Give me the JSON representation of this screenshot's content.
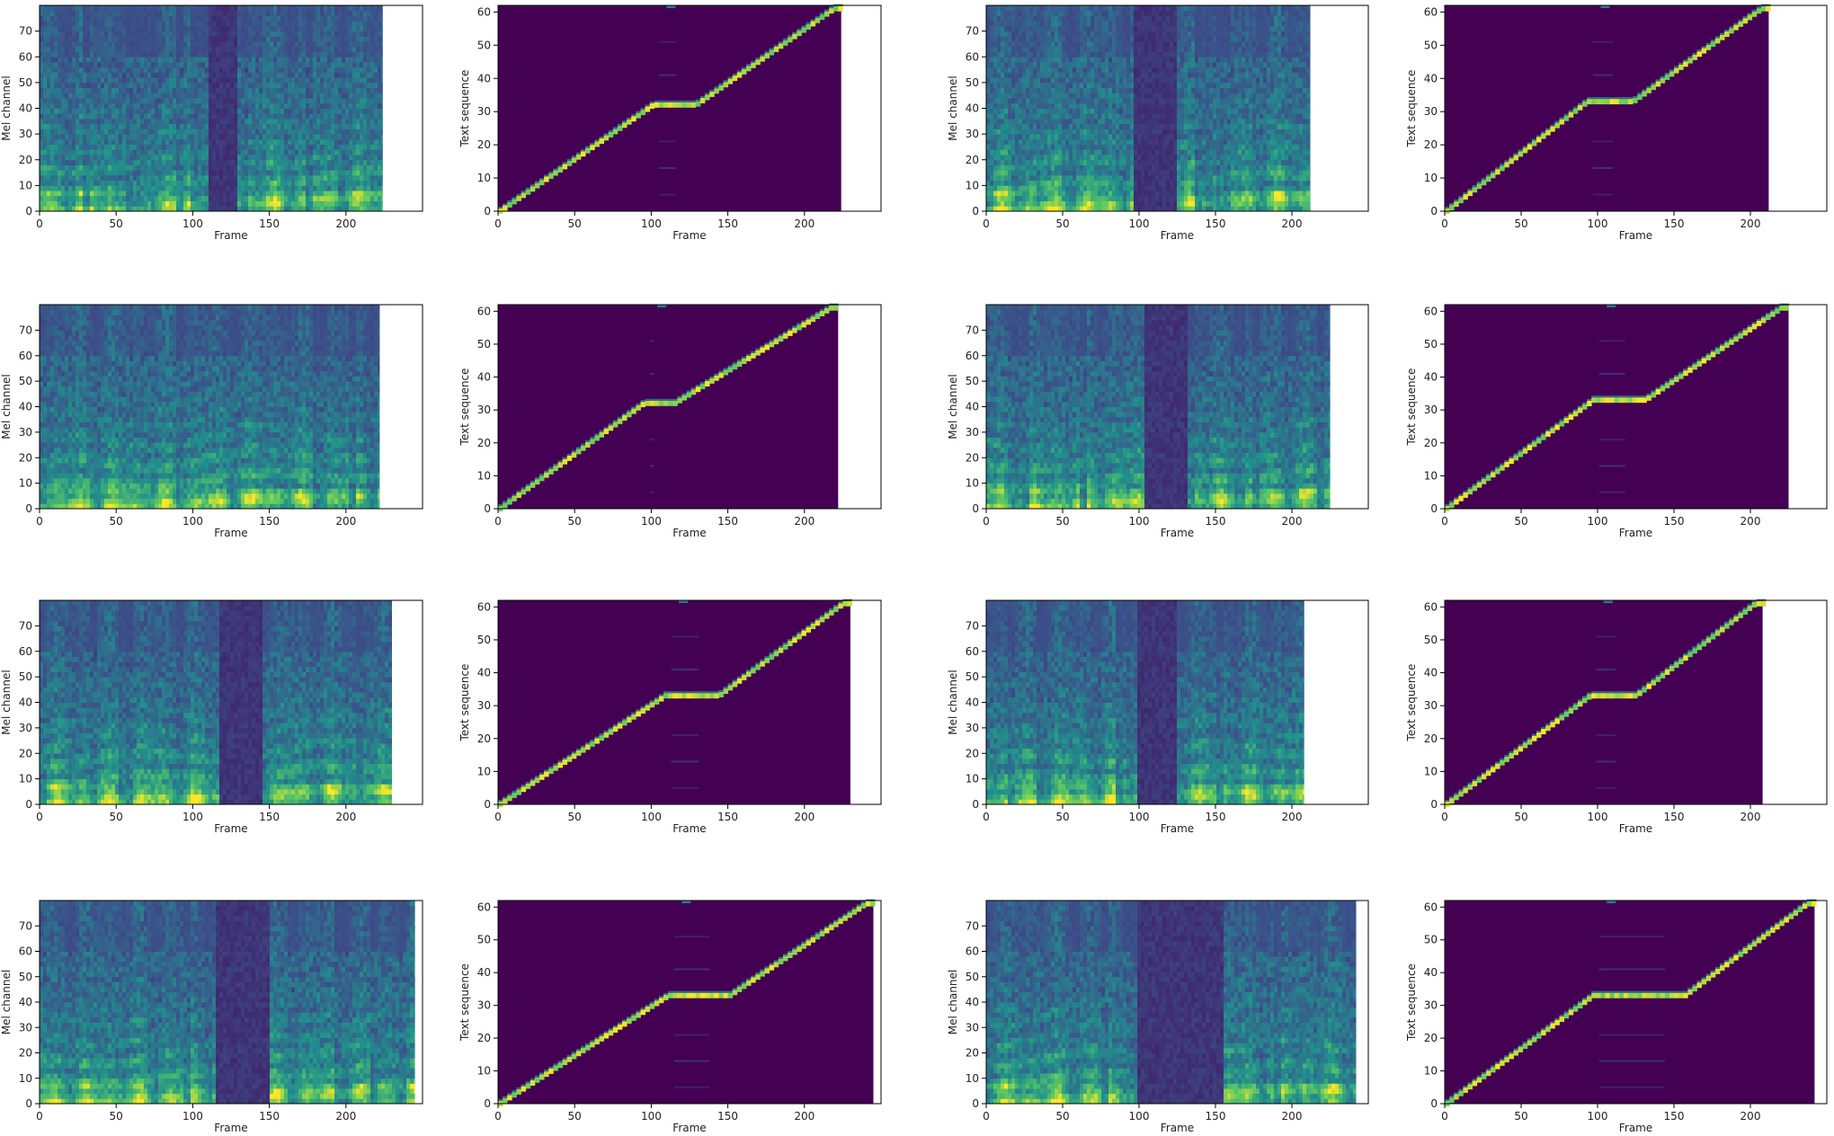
{
  "figure": {
    "layout": "4 rows x 4 columns; each row holds two pairs of (mel spectrogram, attention alignment)",
    "colormap": [
      "#440154",
      "#3b528b",
      "#21918c",
      "#5ec962",
      "#fde725"
    ]
  },
  "chart_data": [
    {
      "type": "heatmap",
      "kind": "mel",
      "xlabel": "Frame",
      "ylabel": "Mel channel",
      "xlim": [
        0,
        250
      ],
      "ylim": [
        0,
        80
      ],
      "xticks": [
        0,
        50,
        100,
        150,
        200
      ],
      "yticks": [
        0,
        10,
        20,
        30,
        40,
        50,
        60,
        70
      ],
      "frames": 224,
      "pause": [
        108,
        128
      ]
    },
    {
      "type": "heatmap",
      "kind": "alignment",
      "xlabel": "Frame",
      "ylabel": "Text sequence",
      "xlim": [
        0,
        250
      ],
      "ylim": [
        0,
        62
      ],
      "xticks": [
        0,
        50,
        100,
        150,
        200
      ],
      "yticks": [
        0,
        10,
        20,
        30,
        40,
        50,
        60
      ],
      "frames": 224,
      "pause": [
        100,
        128
      ],
      "plateau": 32
    },
    {
      "type": "heatmap",
      "kind": "mel",
      "xlabel": "Frame",
      "ylabel": "Mel channel",
      "xlim": [
        0,
        250
      ],
      "ylim": [
        0,
        80
      ],
      "xticks": [
        0,
        50,
        100,
        150,
        200
      ],
      "yticks": [
        0,
        10,
        20,
        30,
        40,
        50,
        60,
        70
      ],
      "frames": 212,
      "pause": [
        96,
        124
      ]
    },
    {
      "type": "heatmap",
      "kind": "alignment",
      "xlabel": "Frame",
      "ylabel": "Text sequence",
      "xlim": [
        0,
        250
      ],
      "ylim": [
        0,
        62
      ],
      "xticks": [
        0,
        50,
        100,
        150,
        200
      ],
      "yticks": [
        0,
        10,
        20,
        30,
        40,
        50,
        60
      ],
      "frames": 212,
      "pause": [
        92,
        122
      ],
      "plateau": 33
    },
    {
      "type": "heatmap",
      "kind": "mel",
      "xlabel": "Frame",
      "ylabel": "Mel channel",
      "xlim": [
        0,
        250
      ],
      "ylim": [
        0,
        80
      ],
      "xticks": [
        0,
        50,
        100,
        150,
        200
      ],
      "yticks": [
        0,
        10,
        20,
        30,
        40,
        50,
        60,
        70
      ],
      "frames": 222,
      "pause": null
    },
    {
      "type": "heatmap",
      "kind": "alignment",
      "xlabel": "Frame",
      "ylabel": "Text sequence",
      "xlim": [
        0,
        250
      ],
      "ylim": [
        0,
        62
      ],
      "xticks": [
        0,
        50,
        100,
        150,
        200
      ],
      "yticks": [
        0,
        10,
        20,
        30,
        40,
        50,
        60
      ],
      "frames": 222,
      "pause": [
        94,
        114
      ],
      "plateau": 32
    },
    {
      "type": "heatmap",
      "kind": "mel",
      "xlabel": "Frame",
      "ylabel": "Mel channel",
      "xlim": [
        0,
        250
      ],
      "ylim": [
        0,
        80
      ],
      "xticks": [
        0,
        50,
        100,
        150,
        200
      ],
      "yticks": [
        0,
        10,
        20,
        30,
        40,
        50,
        60,
        70
      ],
      "frames": 225,
      "pause": [
        102,
        130
      ]
    },
    {
      "type": "heatmap",
      "kind": "alignment",
      "xlabel": "Frame",
      "ylabel": "Text sequence",
      "xlim": [
        0,
        250
      ],
      "ylim": [
        0,
        62
      ],
      "xticks": [
        0,
        50,
        100,
        150,
        200
      ],
      "yticks": [
        0,
        10,
        20,
        30,
        40,
        50,
        60
      ],
      "frames": 225,
      "pause": [
        96,
        130
      ],
      "plateau": 33
    },
    {
      "type": "heatmap",
      "kind": "mel",
      "xlabel": "Frame",
      "ylabel": "Mel channel",
      "xlim": [
        0,
        250
      ],
      "ylim": [
        0,
        80
      ],
      "xticks": [
        0,
        50,
        100,
        150,
        200
      ],
      "yticks": [
        0,
        10,
        20,
        30,
        40,
        50,
        60,
        70
      ],
      "frames": 230,
      "pause": [
        116,
        144
      ]
    },
    {
      "type": "heatmap",
      "kind": "alignment",
      "xlabel": "Frame",
      "ylabel": "Text sequence",
      "xlim": [
        0,
        250
      ],
      "ylim": [
        0,
        62
      ],
      "xticks": [
        0,
        50,
        100,
        150,
        200
      ],
      "yticks": [
        0,
        10,
        20,
        30,
        40,
        50,
        60
      ],
      "frames": 230,
      "pause": [
        108,
        143
      ],
      "plateau": 33
    },
    {
      "type": "heatmap",
      "kind": "mel",
      "xlabel": "Frame",
      "ylabel": "Mel channel",
      "xlim": [
        0,
        250
      ],
      "ylim": [
        0,
        80
      ],
      "xticks": [
        0,
        50,
        100,
        150,
        200
      ],
      "yticks": [
        0,
        10,
        20,
        30,
        40,
        50,
        60,
        70
      ],
      "frames": 208,
      "pause": [
        97,
        124
      ]
    },
    {
      "type": "heatmap",
      "kind": "alignment",
      "xlabel": "Frame",
      "ylabel": "Text sequence",
      "xlim": [
        0,
        250
      ],
      "ylim": [
        0,
        62
      ],
      "xticks": [
        0,
        50,
        100,
        150,
        200
      ],
      "yticks": [
        0,
        10,
        20,
        30,
        40,
        50,
        60
      ],
      "frames": 208,
      "pause": [
        94,
        124
      ],
      "plateau": 33
    },
    {
      "type": "heatmap",
      "kind": "mel",
      "xlabel": "Frame",
      "ylabel": "Mel channel",
      "xlim": [
        0,
        250
      ],
      "ylim": [
        0,
        80
      ],
      "xticks": [
        0,
        50,
        100,
        150,
        200
      ],
      "yticks": [
        0,
        10,
        20,
        30,
        40,
        50,
        60,
        70
      ],
      "frames": 245,
      "pause": [
        115,
        150
      ]
    },
    {
      "type": "heatmap",
      "kind": "alignment",
      "xlabel": "Frame",
      "ylabel": "Text sequence",
      "xlim": [
        0,
        250
      ],
      "ylim": [
        0,
        62
      ],
      "xticks": [
        0,
        50,
        100,
        150,
        200
      ],
      "yticks": [
        0,
        10,
        20,
        30,
        40,
        50,
        60
      ],
      "frames": 245,
      "pause": [
        110,
        150
      ],
      "plateau": 33
    },
    {
      "type": "heatmap",
      "kind": "mel",
      "xlabel": "Frame",
      "ylabel": "Mel channel",
      "xlim": [
        0,
        250
      ],
      "ylim": [
        0,
        80
      ],
      "xticks": [
        0,
        50,
        100,
        150,
        200
      ],
      "yticks": [
        0,
        10,
        20,
        30,
        40,
        50,
        60,
        70
      ],
      "frames": 242,
      "pause": [
        98,
        155
      ]
    },
    {
      "type": "heatmap",
      "kind": "alignment",
      "xlabel": "Frame",
      "ylabel": "Text sequence",
      "xlim": [
        0,
        250
      ],
      "ylim": [
        0,
        62
      ],
      "xticks": [
        0,
        50,
        100,
        150,
        200
      ],
      "yticks": [
        0,
        10,
        20,
        30,
        40,
        50,
        60
      ],
      "frames": 242,
      "pause": [
        96,
        156
      ],
      "plateau": 33
    }
  ]
}
